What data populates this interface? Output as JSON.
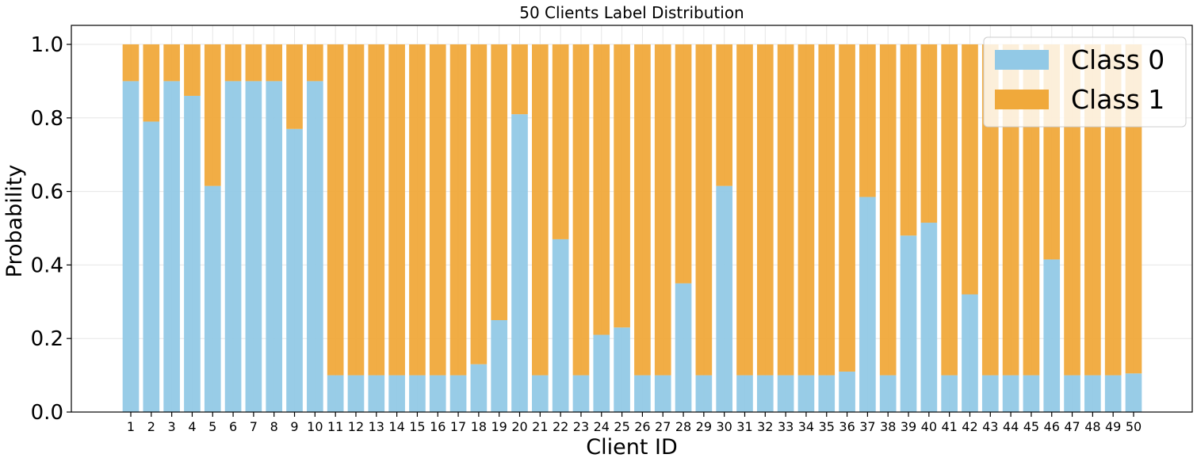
{
  "chart_data": {
    "type": "bar",
    "stacked": true,
    "title": "50 Clients Label Distribution",
    "xlabel": "Client ID",
    "ylabel": "Probability",
    "ylim": [
      0,
      1.0
    ],
    "yticks": [
      "0.0",
      "0.2",
      "0.4",
      "0.6",
      "0.8",
      "1.0"
    ],
    "grid": true,
    "legend_position": "top-right",
    "categories": [
      "1",
      "2",
      "3",
      "4",
      "5",
      "6",
      "7",
      "8",
      "9",
      "10",
      "11",
      "12",
      "13",
      "14",
      "15",
      "16",
      "17",
      "18",
      "19",
      "20",
      "21",
      "22",
      "23",
      "24",
      "25",
      "26",
      "27",
      "28",
      "29",
      "30",
      "31",
      "32",
      "33",
      "34",
      "35",
      "36",
      "37",
      "38",
      "39",
      "40",
      "41",
      "42",
      "43",
      "44",
      "45",
      "46",
      "47",
      "48",
      "49",
      "50"
    ],
    "series": [
      {
        "name": "Class 0",
        "color": "#92c9e6",
        "values": [
          0.9,
          0.79,
          0.9,
          0.86,
          0.615,
          0.9,
          0.9,
          0.9,
          0.77,
          0.9,
          0.1,
          0.1,
          0.1,
          0.1,
          0.1,
          0.1,
          0.1,
          0.13,
          0.25,
          0.81,
          0.1,
          0.47,
          0.1,
          0.21,
          0.23,
          0.1,
          0.1,
          0.35,
          0.1,
          0.615,
          0.1,
          0.1,
          0.1,
          0.1,
          0.1,
          0.11,
          0.585,
          0.1,
          0.48,
          0.515,
          0.1,
          0.32,
          0.1,
          0.1,
          0.1,
          0.415,
          0.1,
          0.1,
          0.1,
          0.105
        ]
      },
      {
        "name": "Class 1",
        "color": "#f0a93b",
        "values": [
          0.1,
          0.21,
          0.1,
          0.14,
          0.385,
          0.1,
          0.1,
          0.1,
          0.23,
          0.1,
          0.9,
          0.9,
          0.9,
          0.9,
          0.9,
          0.9,
          0.9,
          0.87,
          0.75,
          0.19,
          0.9,
          0.53,
          0.9,
          0.79,
          0.77,
          0.9,
          0.9,
          0.65,
          0.9,
          0.385,
          0.9,
          0.9,
          0.9,
          0.9,
          0.9,
          0.89,
          0.415,
          0.9,
          0.52,
          0.485,
          0.9,
          0.68,
          0.9,
          0.9,
          0.9,
          0.585,
          0.9,
          0.9,
          0.9,
          0.895
        ]
      }
    ]
  }
}
